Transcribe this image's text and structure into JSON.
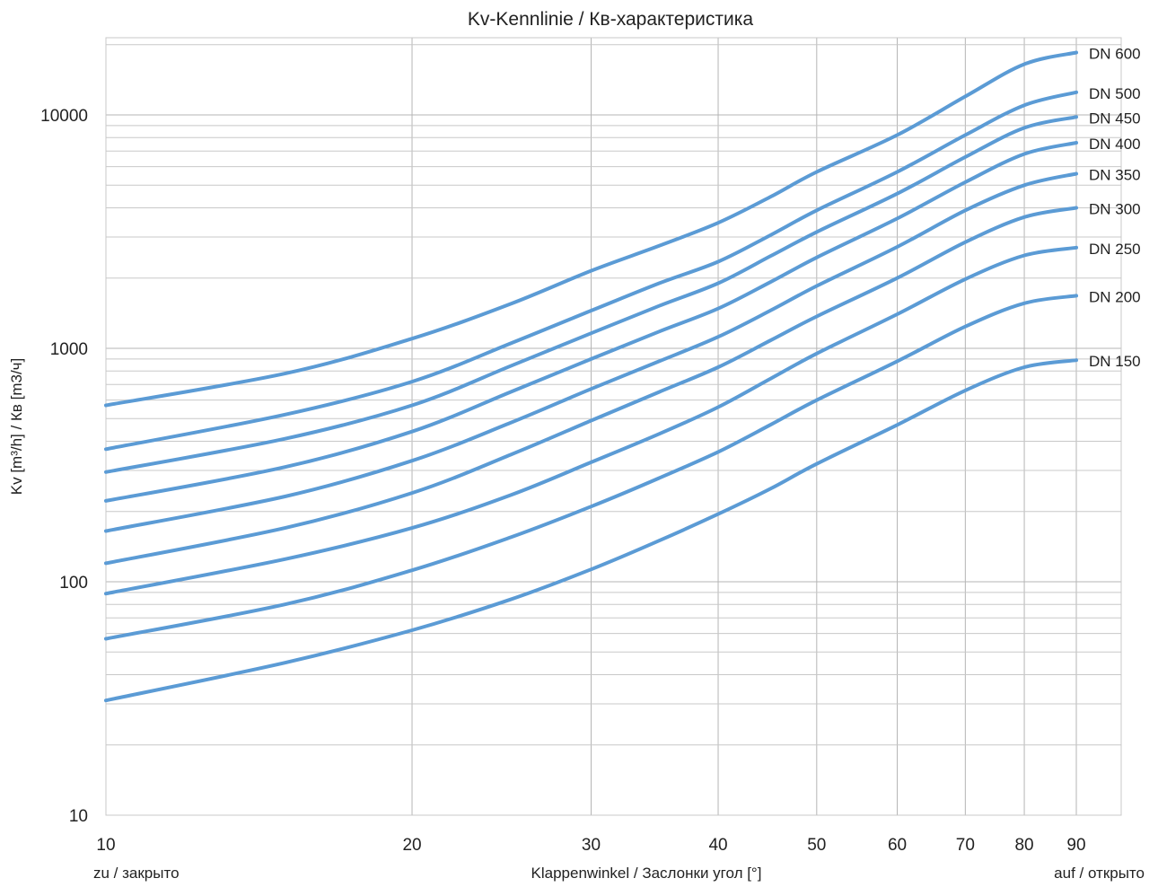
{
  "chart_data": {
    "type": "line",
    "title": "Kv-Kennlinie  / Кв-характеристика",
    "xlabel": "Klappenwinkel  / Заслонки угол [°]",
    "ylabel": "Kv [m³/h] / Кв [m3/ч]",
    "x_left_label": "zu / закрыто",
    "x_right_label": "auf / открыто",
    "x_scale": "log",
    "y_scale": "log",
    "xlim": [
      10,
      90
    ],
    "ylim": [
      10,
      20000
    ],
    "x_ticks": [
      10,
      20,
      30,
      40,
      50,
      60,
      70,
      80,
      90
    ],
    "y_ticks": [
      10,
      100,
      1000,
      10000
    ],
    "grid": true,
    "line_color": "#5b9bd5",
    "x": [
      10,
      15,
      20,
      25,
      30,
      35,
      40,
      45,
      50,
      60,
      70,
      80,
      90
    ],
    "series": [
      {
        "name": "DN 600",
        "values": [
          570,
          780,
          1100,
          1550,
          2150,
          2750,
          3450,
          4450,
          5700,
          8200,
          12000,
          16500,
          18500
        ]
      },
      {
        "name": "DN 500",
        "values": [
          370,
          520,
          720,
          1050,
          1450,
          1900,
          2350,
          3050,
          3900,
          5700,
          8200,
          11000,
          12500
        ]
      },
      {
        "name": "DN 450",
        "values": [
          295,
          410,
          570,
          840,
          1160,
          1520,
          1900,
          2480,
          3150,
          4600,
          6600,
          8800,
          9800
        ]
      },
      {
        "name": "DN 400",
        "values": [
          222,
          310,
          440,
          650,
          900,
          1180,
          1480,
          1920,
          2450,
          3600,
          5150,
          6800,
          7600
        ]
      },
      {
        "name": "DN 350",
        "values": [
          165,
          232,
          330,
          480,
          670,
          880,
          1120,
          1450,
          1850,
          2720,
          3900,
          5000,
          5600
        ]
      },
      {
        "name": "DN 300",
        "values": [
          120,
          170,
          240,
          350,
          490,
          650,
          830,
          1080,
          1370,
          2000,
          2850,
          3650,
          4000
        ]
      },
      {
        "name": "DN 250",
        "values": [
          89,
          125,
          170,
          235,
          325,
          430,
          560,
          740,
          950,
          1400,
          1980,
          2500,
          2700
        ]
      },
      {
        "name": "DN 200",
        "values": [
          57,
          80,
          112,
          155,
          210,
          278,
          360,
          470,
          600,
          880,
          1240,
          1560,
          1680
        ]
      },
      {
        "name": "DN 150",
        "values": [
          31,
          45,
          62,
          84,
          113,
          150,
          195,
          250,
          320,
          470,
          660,
          830,
          890
        ]
      }
    ]
  }
}
